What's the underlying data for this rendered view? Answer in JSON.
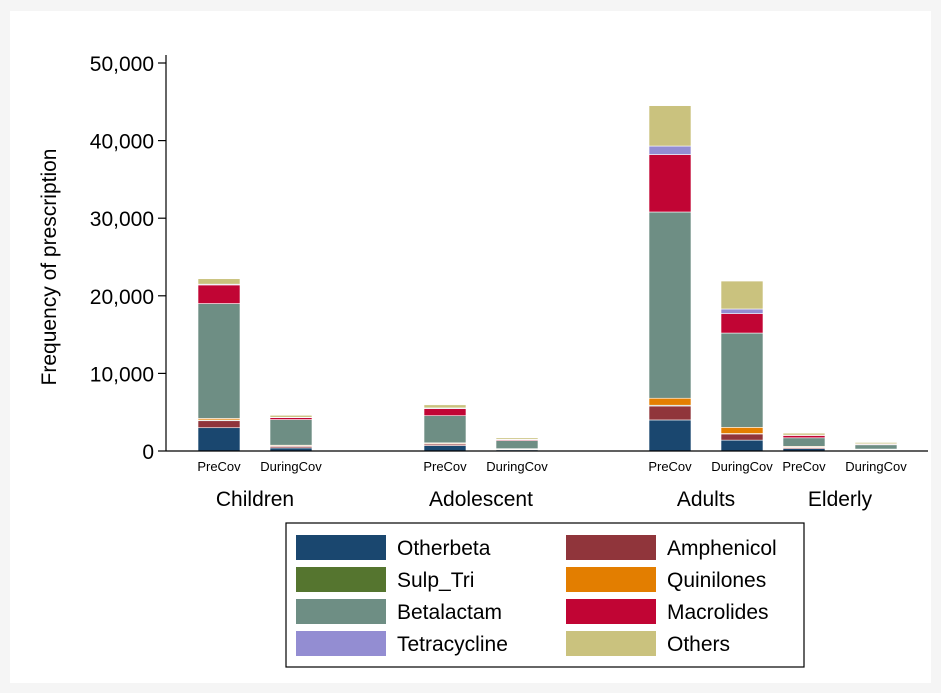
{
  "chart_data": {
    "type": "bar",
    "stacked": true,
    "title": "",
    "ylabel": "Frequency of prescription",
    "xlabel": "",
    "ylim": [
      0,
      50000
    ],
    "yticks": [
      0,
      10000,
      20000,
      30000,
      40000,
      50000
    ],
    "ytick_labels": [
      "0",
      "10,000",
      "20,000",
      "30,000",
      "40,000",
      "50,000"
    ],
    "grid": false,
    "legend_position": "bottom",
    "groups": [
      "Children",
      "Adolescent",
      "Adults",
      "Elderly"
    ],
    "subcategories": [
      "PreCov",
      "DuringCov"
    ],
    "series": [
      {
        "name": "Otherbeta",
        "color": "#1a476f",
        "values": [
          [
            3000,
            400
          ],
          [
            700,
            150
          ],
          [
            4000,
            1400
          ],
          [
            300,
            100
          ]
        ]
      },
      {
        "name": "Amphenicol",
        "color": "#90353b",
        "values": [
          [
            900,
            200
          ],
          [
            200,
            80
          ],
          [
            1800,
            800
          ],
          [
            150,
            60
          ]
        ]
      },
      {
        "name": "Sulp_Tri",
        "color": "#55752f",
        "values": [
          [
            100,
            50
          ],
          [
            50,
            20
          ],
          [
            100,
            50
          ],
          [
            50,
            30
          ]
        ]
      },
      {
        "name": "Quinilones",
        "color": "#e37e00",
        "values": [
          [
            200,
            100
          ],
          [
            100,
            50
          ],
          [
            900,
            800
          ],
          [
            100,
            60
          ]
        ]
      },
      {
        "name": "Betalactam",
        "color": "#6e8e84",
        "values": [
          [
            14800,
            3300
          ],
          [
            3500,
            1050
          ],
          [
            24000,
            12150
          ],
          [
            1100,
            550
          ]
        ]
      },
      {
        "name": "Macrolides",
        "color": "#c10534",
        "values": [
          [
            2400,
            250
          ],
          [
            900,
            120
          ],
          [
            7400,
            2500
          ],
          [
            300,
            100
          ]
        ]
      },
      {
        "name": "Tetracycline",
        "color": "#938dd2",
        "values": [
          [
            100,
            50
          ],
          [
            100,
            50
          ],
          [
            1100,
            600
          ],
          [
            50,
            30
          ]
        ]
      },
      {
        "name": "Others",
        "color": "#cac27e",
        "values": [
          [
            700,
            250
          ],
          [
            400,
            180
          ],
          [
            5200,
            3600
          ],
          [
            250,
            170
          ]
        ]
      }
    ],
    "legend_order": [
      "Otherbeta",
      "Amphenicol",
      "Sulp_Tri",
      "Quinilones",
      "Betalactam",
      "Macrolides",
      "Tetracycline",
      "Others"
    ]
  }
}
